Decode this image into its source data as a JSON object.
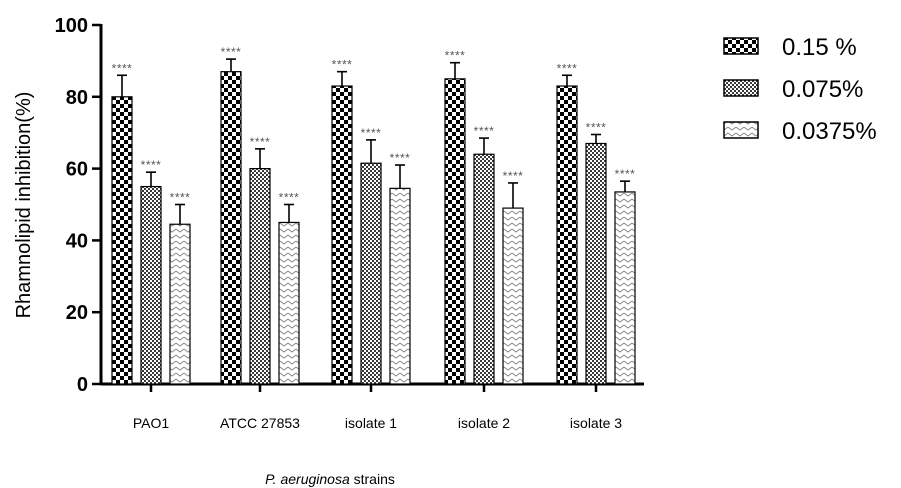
{
  "chart_data": {
    "type": "bar",
    "title": "",
    "ylabel": "Rhamnolipid inhibition(%)",
    "xlabel_italic": "P. aeruginosa",
    "xlabel_rest": " strains",
    "ylim": [
      0,
      100
    ],
    "yticks": [
      0,
      20,
      40,
      60,
      80,
      100
    ],
    "legend_position": "top-right",
    "categories": [
      "PAO1",
      "ATCC 27853",
      "isolate 1",
      "isolate 2",
      "isolate 3"
    ],
    "series": [
      {
        "name": "0.15 %",
        "pattern": "checker-coarse",
        "values": [
          80,
          87,
          83,
          85,
          83
        ],
        "errors": [
          6,
          3.5,
          4,
          4.5,
          3
        ]
      },
      {
        "name": "0.075%",
        "pattern": "checker-fine",
        "values": [
          55,
          60,
          61.5,
          64,
          67
        ],
        "errors": [
          4,
          5.5,
          6.5,
          4.5,
          2.5
        ]
      },
      {
        "name": "0.0375%",
        "pattern": "chevron",
        "values": [
          44.5,
          45,
          54.5,
          49,
          53.5
        ],
        "errors": [
          5.5,
          5,
          6.5,
          7,
          3
        ]
      }
    ],
    "significance_label": "****"
  }
}
